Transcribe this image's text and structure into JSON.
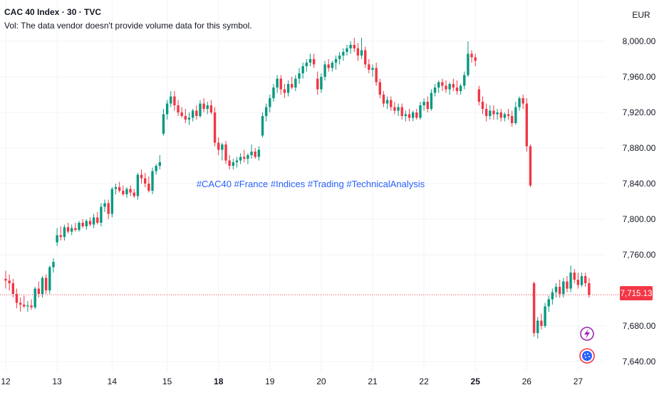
{
  "header": {
    "symbol_title": "CAC 40 Index · 30 · TVC",
    "volume_note": "Vol: The data vendor doesn't provide volume data for this symbol.",
    "currency": "EUR"
  },
  "annotation": {
    "hashtags": "#CAC40 #France #Indices #Trading #TechnicalAnalysis"
  },
  "last_price": {
    "value": 7715.13,
    "label": "7,715.13"
  },
  "colors": {
    "up": "#089981",
    "down": "#f23645",
    "grid": "#f0f3fa",
    "text": "#131722",
    "price_line": "#f23645",
    "hashtag": "#2962ff",
    "lightning": "#9c27b0",
    "event": "#2962ff"
  },
  "icons": [
    "lightning-icon",
    "calendar-event-icon"
  ],
  "chart_data": {
    "type": "candlestick",
    "title": "CAC 40 Index · 30 · TVC",
    "y_axis": {
      "ticks": [
        "8,000.00",
        "7,960.00",
        "7,920.00",
        "7,880.00",
        "7,840.00",
        "7,800.00",
        "7,760.00",
        "7,680.00",
        "7,640.00"
      ],
      "tick_values": [
        8000,
        7960,
        7920,
        7880,
        7840,
        7800,
        7760,
        7680,
        7640
      ],
      "range": [
        7630,
        8020
      ]
    },
    "x_axis": {
      "ticks": [
        "12",
        "13",
        "14",
        "15",
        "18",
        "19",
        "20",
        "21",
        "22",
        "25",
        "26",
        "27"
      ],
      "bold_ticks": [
        "18",
        "25"
      ],
      "tick_index": [
        0,
        14,
        29,
        44,
        58,
        72,
        86,
        100,
        114,
        128,
        142,
        156
      ]
    },
    "candles": [
      {
        "o": 7733,
        "h": 7742,
        "l": 7722,
        "c": 7731
      },
      {
        "o": 7731,
        "h": 7738,
        "l": 7720,
        "c": 7728
      },
      {
        "o": 7728,
        "h": 7733,
        "l": 7712,
        "c": 7716
      },
      {
        "o": 7716,
        "h": 7722,
        "l": 7700,
        "c": 7706
      },
      {
        "o": 7706,
        "h": 7712,
        "l": 7696,
        "c": 7704
      },
      {
        "o": 7704,
        "h": 7714,
        "l": 7700,
        "c": 7702
      },
      {
        "o": 7702,
        "h": 7708,
        "l": 7696,
        "c": 7703
      },
      {
        "o": 7703,
        "h": 7710,
        "l": 7698,
        "c": 7701
      },
      {
        "o": 7701,
        "h": 7724,
        "l": 7699,
        "c": 7722
      },
      {
        "o": 7722,
        "h": 7730,
        "l": 7712,
        "c": 7716
      },
      {
        "o": 7716,
        "h": 7736,
        "l": 7712,
        "c": 7734
      },
      {
        "o": 7734,
        "h": 7738,
        "l": 7716,
        "c": 7720
      },
      {
        "o": 7720,
        "h": 7748,
        "l": 7716,
        "c": 7746
      },
      {
        "o": 7746,
        "h": 7756,
        "l": 7740,
        "c": 7752
      },
      {
        "o": 7774,
        "h": 7790,
        "l": 7770,
        "c": 7782
      },
      {
        "o": 7782,
        "h": 7792,
        "l": 7776,
        "c": 7780
      },
      {
        "o": 7780,
        "h": 7794,
        "l": 7776,
        "c": 7791
      },
      {
        "o": 7791,
        "h": 7796,
        "l": 7784,
        "c": 7786
      },
      {
        "o": 7786,
        "h": 7794,
        "l": 7782,
        "c": 7790
      },
      {
        "o": 7790,
        "h": 7796,
        "l": 7786,
        "c": 7788
      },
      {
        "o": 7788,
        "h": 7798,
        "l": 7786,
        "c": 7796
      },
      {
        "o": 7796,
        "h": 7800,
        "l": 7790,
        "c": 7792
      },
      {
        "o": 7792,
        "h": 7800,
        "l": 7788,
        "c": 7798
      },
      {
        "o": 7798,
        "h": 7802,
        "l": 7792,
        "c": 7794
      },
      {
        "o": 7794,
        "h": 7806,
        "l": 7790,
        "c": 7802
      },
      {
        "o": 7802,
        "h": 7808,
        "l": 7794,
        "c": 7796
      },
      {
        "o": 7796,
        "h": 7818,
        "l": 7792,
        "c": 7814
      },
      {
        "o": 7814,
        "h": 7822,
        "l": 7808,
        "c": 7818
      },
      {
        "o": 7818,
        "h": 7822,
        "l": 7800,
        "c": 7806
      },
      {
        "o": 7806,
        "h": 7836,
        "l": 7802,
        "c": 7834
      },
      {
        "o": 7834,
        "h": 7840,
        "l": 7828,
        "c": 7836
      },
      {
        "o": 7836,
        "h": 7842,
        "l": 7830,
        "c": 7832
      },
      {
        "o": 7832,
        "h": 7838,
        "l": 7826,
        "c": 7828
      },
      {
        "o": 7828,
        "h": 7836,
        "l": 7824,
        "c": 7834
      },
      {
        "o": 7834,
        "h": 7838,
        "l": 7826,
        "c": 7830
      },
      {
        "o": 7830,
        "h": 7834,
        "l": 7824,
        "c": 7826
      },
      {
        "o": 7826,
        "h": 7852,
        "l": 7822,
        "c": 7850
      },
      {
        "o": 7850,
        "h": 7856,
        "l": 7840,
        "c": 7846
      },
      {
        "o": 7846,
        "h": 7852,
        "l": 7836,
        "c": 7840
      },
      {
        "o": 7840,
        "h": 7848,
        "l": 7830,
        "c": 7832
      },
      {
        "o": 7832,
        "h": 7858,
        "l": 7828,
        "c": 7854
      },
      {
        "o": 7854,
        "h": 7862,
        "l": 7850,
        "c": 7860
      },
      {
        "o": 7860,
        "h": 7872,
        "l": 7856,
        "c": 7864
      },
      {
        "o": 7896,
        "h": 7924,
        "l": 7894,
        "c": 7918
      },
      {
        "o": 7918,
        "h": 7934,
        "l": 7912,
        "c": 7930
      },
      {
        "o": 7930,
        "h": 7944,
        "l": 7926,
        "c": 7938
      },
      {
        "o": 7938,
        "h": 7944,
        "l": 7922,
        "c": 7928
      },
      {
        "o": 7928,
        "h": 7934,
        "l": 7916,
        "c": 7920
      },
      {
        "o": 7920,
        "h": 7926,
        "l": 7914,
        "c": 7916
      },
      {
        "o": 7916,
        "h": 7924,
        "l": 7908,
        "c": 7912
      },
      {
        "o": 7912,
        "h": 7920,
        "l": 7906,
        "c": 7914
      },
      {
        "o": 7914,
        "h": 7924,
        "l": 7910,
        "c": 7922
      },
      {
        "o": 7922,
        "h": 7928,
        "l": 7912,
        "c": 7916
      },
      {
        "o": 7916,
        "h": 7934,
        "l": 7914,
        "c": 7930
      },
      {
        "o": 7930,
        "h": 7936,
        "l": 7920,
        "c": 7924
      },
      {
        "o": 7924,
        "h": 7932,
        "l": 7918,
        "c": 7928
      },
      {
        "o": 7928,
        "h": 7934,
        "l": 7918,
        "c": 7920
      },
      {
        "o": 7920,
        "h": 7926,
        "l": 7882,
        "c": 7886
      },
      {
        "o": 7886,
        "h": 7892,
        "l": 7872,
        "c": 7878
      },
      {
        "o": 7878,
        "h": 7886,
        "l": 7866,
        "c": 7884
      },
      {
        "o": 7884,
        "h": 7888,
        "l": 7862,
        "c": 7866
      },
      {
        "o": 7866,
        "h": 7872,
        "l": 7856,
        "c": 7860
      },
      {
        "o": 7860,
        "h": 7868,
        "l": 7856,
        "c": 7864
      },
      {
        "o": 7864,
        "h": 7870,
        "l": 7858,
        "c": 7866
      },
      {
        "o": 7866,
        "h": 7874,
        "l": 7862,
        "c": 7870
      },
      {
        "o": 7870,
        "h": 7878,
        "l": 7864,
        "c": 7868
      },
      {
        "o": 7868,
        "h": 7874,
        "l": 7862,
        "c": 7872
      },
      {
        "o": 7872,
        "h": 7884,
        "l": 7868,
        "c": 7876
      },
      {
        "o": 7876,
        "h": 7880,
        "l": 7868,
        "c": 7870
      },
      {
        "o": 7870,
        "h": 7882,
        "l": 7866,
        "c": 7878
      },
      {
        "o": 7894,
        "h": 7920,
        "l": 7892,
        "c": 7916
      },
      {
        "o": 7916,
        "h": 7930,
        "l": 7910,
        "c": 7926
      },
      {
        "o": 7926,
        "h": 7940,
        "l": 7920,
        "c": 7936
      },
      {
        "o": 7936,
        "h": 7952,
        "l": 7932,
        "c": 7948
      },
      {
        "o": 7948,
        "h": 7962,
        "l": 7942,
        "c": 7958
      },
      {
        "o": 7958,
        "h": 7962,
        "l": 7940,
        "c": 7946
      },
      {
        "o": 7946,
        "h": 7952,
        "l": 7936,
        "c": 7942
      },
      {
        "o": 7942,
        "h": 7956,
        "l": 7938,
        "c": 7952
      },
      {
        "o": 7952,
        "h": 7960,
        "l": 7946,
        "c": 7948
      },
      {
        "o": 7948,
        "h": 7962,
        "l": 7944,
        "c": 7958
      },
      {
        "o": 7958,
        "h": 7970,
        "l": 7952,
        "c": 7964
      },
      {
        "o": 7964,
        "h": 7976,
        "l": 7958,
        "c": 7972
      },
      {
        "o": 7972,
        "h": 7980,
        "l": 7966,
        "c": 7976
      },
      {
        "o": 7976,
        "h": 7986,
        "l": 7972,
        "c": 7980
      },
      {
        "o": 7980,
        "h": 7986,
        "l": 7970,
        "c": 7974
      },
      {
        "o": 7958,
        "h": 7966,
        "l": 7940,
        "c": 7946
      },
      {
        "o": 7946,
        "h": 7964,
        "l": 7942,
        "c": 7960
      },
      {
        "o": 7960,
        "h": 7978,
        "l": 7956,
        "c": 7974
      },
      {
        "o": 7974,
        "h": 7980,
        "l": 7966,
        "c": 7970
      },
      {
        "o": 7970,
        "h": 7978,
        "l": 7966,
        "c": 7976
      },
      {
        "o": 7976,
        "h": 7984,
        "l": 7968,
        "c": 7980
      },
      {
        "o": 7980,
        "h": 7988,
        "l": 7974,
        "c": 7984
      },
      {
        "o": 7984,
        "h": 7992,
        "l": 7978,
        "c": 7988
      },
      {
        "o": 7988,
        "h": 7996,
        "l": 7984,
        "c": 7992
      },
      {
        "o": 7992,
        "h": 8000,
        "l": 7986,
        "c": 7996
      },
      {
        "o": 7996,
        "h": 8004,
        "l": 7988,
        "c": 7992
      },
      {
        "o": 7992,
        "h": 7998,
        "l": 7978,
        "c": 7984
      },
      {
        "o": 7984,
        "h": 8004,
        "l": 7980,
        "c": 7990
      },
      {
        "o": 7990,
        "h": 7994,
        "l": 7970,
        "c": 7974
      },
      {
        "o": 7974,
        "h": 7980,
        "l": 7964,
        "c": 7968
      },
      {
        "o": 7968,
        "h": 7974,
        "l": 7960,
        "c": 7970
      },
      {
        "o": 7970,
        "h": 7976,
        "l": 7950,
        "c": 7954
      },
      {
        "o": 7954,
        "h": 7958,
        "l": 7936,
        "c": 7940
      },
      {
        "o": 7940,
        "h": 7944,
        "l": 7926,
        "c": 7930
      },
      {
        "o": 7930,
        "h": 7938,
        "l": 7924,
        "c": 7934
      },
      {
        "o": 7934,
        "h": 7938,
        "l": 7922,
        "c": 7926
      },
      {
        "o": 7926,
        "h": 7932,
        "l": 7918,
        "c": 7922
      },
      {
        "o": 7922,
        "h": 7930,
        "l": 7916,
        "c": 7926
      },
      {
        "o": 7926,
        "h": 7930,
        "l": 7912,
        "c": 7916
      },
      {
        "o": 7916,
        "h": 7922,
        "l": 7910,
        "c": 7918
      },
      {
        "o": 7918,
        "h": 7924,
        "l": 7910,
        "c": 7914
      },
      {
        "o": 7914,
        "h": 7922,
        "l": 7910,
        "c": 7920
      },
      {
        "o": 7920,
        "h": 7924,
        "l": 7912,
        "c": 7914
      },
      {
        "o": 7914,
        "h": 7932,
        "l": 7912,
        "c": 7928
      },
      {
        "o": 7928,
        "h": 7936,
        "l": 7922,
        "c": 7932
      },
      {
        "o": 7932,
        "h": 7938,
        "l": 7920,
        "c": 7924
      },
      {
        "o": 7924,
        "h": 7946,
        "l": 7922,
        "c": 7942
      },
      {
        "o": 7942,
        "h": 7952,
        "l": 7938,
        "c": 7948
      },
      {
        "o": 7948,
        "h": 7956,
        "l": 7942,
        "c": 7954
      },
      {
        "o": 7954,
        "h": 7958,
        "l": 7944,
        "c": 7950
      },
      {
        "o": 7950,
        "h": 7956,
        "l": 7942,
        "c": 7946
      },
      {
        "o": 7946,
        "h": 7954,
        "l": 7940,
        "c": 7952
      },
      {
        "o": 7952,
        "h": 7958,
        "l": 7944,
        "c": 7948
      },
      {
        "o": 7948,
        "h": 7956,
        "l": 7940,
        "c": 7944
      },
      {
        "o": 7944,
        "h": 7952,
        "l": 7940,
        "c": 7950
      },
      {
        "o": 7950,
        "h": 7966,
        "l": 7946,
        "c": 7962
      },
      {
        "o": 7962,
        "h": 8000,
        "l": 7960,
        "c": 7986
      },
      {
        "o": 7986,
        "h": 7990,
        "l": 7976,
        "c": 7982
      },
      {
        "o": 7982,
        "h": 7986,
        "l": 7972,
        "c": 7978
      },
      {
        "o": 7946,
        "h": 7950,
        "l": 7928,
        "c": 7932
      },
      {
        "o": 7932,
        "h": 7938,
        "l": 7918,
        "c": 7924
      },
      {
        "o": 7924,
        "h": 7930,
        "l": 7910,
        "c": 7916
      },
      {
        "o": 7916,
        "h": 7928,
        "l": 7912,
        "c": 7922
      },
      {
        "o": 7922,
        "h": 7928,
        "l": 7912,
        "c": 7918
      },
      {
        "o": 7918,
        "h": 7924,
        "l": 7912,
        "c": 7920
      },
      {
        "o": 7920,
        "h": 7924,
        "l": 7910,
        "c": 7914
      },
      {
        "o": 7914,
        "h": 7920,
        "l": 7910,
        "c": 7918
      },
      {
        "o": 7918,
        "h": 7924,
        "l": 7912,
        "c": 7916
      },
      {
        "o": 7916,
        "h": 7922,
        "l": 7904,
        "c": 7908
      },
      {
        "o": 7908,
        "h": 7932,
        "l": 7906,
        "c": 7926
      },
      {
        "o": 7926,
        "h": 7938,
        "l": 7922,
        "c": 7936
      },
      {
        "o": 7936,
        "h": 7940,
        "l": 7924,
        "c": 7930
      },
      {
        "o": 7930,
        "h": 7936,
        "l": 7876,
        "c": 7882
      },
      {
        "o": 7882,
        "h": 7884,
        "l": 7836,
        "c": 7838
      },
      {
        "o": 7728,
        "h": 7730,
        "l": 7668,
        "c": 7672
      },
      {
        "o": 7672,
        "h": 7690,
        "l": 7666,
        "c": 7686
      },
      {
        "o": 7686,
        "h": 7694,
        "l": 7676,
        "c": 7680
      },
      {
        "o": 7680,
        "h": 7706,
        "l": 7678,
        "c": 7702
      },
      {
        "o": 7702,
        "h": 7714,
        "l": 7696,
        "c": 7710
      },
      {
        "o": 7710,
        "h": 7722,
        "l": 7704,
        "c": 7718
      },
      {
        "o": 7718,
        "h": 7728,
        "l": 7712,
        "c": 7724
      },
      {
        "o": 7724,
        "h": 7732,
        "l": 7712,
        "c": 7716
      },
      {
        "o": 7716,
        "h": 7734,
        "l": 7712,
        "c": 7730
      },
      {
        "o": 7730,
        "h": 7736,
        "l": 7718,
        "c": 7722
      },
      {
        "o": 7722,
        "h": 7748,
        "l": 7718,
        "c": 7740
      },
      {
        "o": 7740,
        "h": 7744,
        "l": 7728,
        "c": 7732
      },
      {
        "o": 7732,
        "h": 7740,
        "l": 7722,
        "c": 7726
      },
      {
        "o": 7726,
        "h": 7740,
        "l": 7724,
        "c": 7736
      },
      {
        "o": 7736,
        "h": 7740,
        "l": 7724,
        "c": 7728
      },
      {
        "o": 7728,
        "h": 7734,
        "l": 7712,
        "c": 7715.13
      }
    ]
  }
}
